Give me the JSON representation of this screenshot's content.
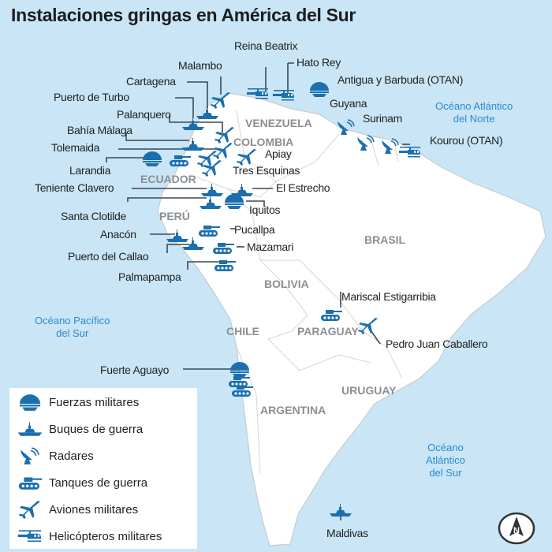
{
  "title": "Instalaciones gringas en América del Sur",
  "colors": {
    "ocean": "#c9e5f6",
    "land": "#ffffff",
    "icon": "#1b6fae",
    "border": "#c8ccd0"
  },
  "countries": [
    "VENEZUELA",
    "COLOMBIA",
    "ECUADOR",
    "PERÚ",
    "BRASIL",
    "BOLIVIA",
    "CHILE",
    "PARAGUAY",
    "URUGUAY",
    "ARGENTINA"
  ],
  "oceans": {
    "atl_norte": [
      "Océano Atlántico",
      "del Norte"
    ],
    "pac_sur": [
      "Océano Pacífico",
      "del Sur"
    ],
    "atl_sur": [
      "Océano",
      "Atlántico",
      "del Sur"
    ]
  },
  "sites": [
    {
      "name": "Reina Beatrix",
      "type": "helicopter"
    },
    {
      "name": "Hato Rey",
      "type": "helicopter"
    },
    {
      "name": "Malambo",
      "type": "plane"
    },
    {
      "name": "Antigua y Barbuda (OTAN)",
      "type": "forces"
    },
    {
      "name": "Cartagena",
      "type": "ship"
    },
    {
      "name": "Puerto de Turbo",
      "type": "ship"
    },
    {
      "name": "Guyana",
      "type": "radar"
    },
    {
      "name": "Palanquero",
      "type": "plane"
    },
    {
      "name": "Surinam",
      "type": "radar"
    },
    {
      "name": "Bahía Málaga",
      "type": "ship"
    },
    {
      "name": "Kourou (OTAN)",
      "type": "radar"
    },
    {
      "name": "Tolemaida",
      "type": "plane"
    },
    {
      "name": "Apiay",
      "type": "plane"
    },
    {
      "name": "Larandia",
      "type": "forces"
    },
    {
      "name": "Tres Esquinas",
      "type": "plane"
    },
    {
      "name": "Teniente Clavero",
      "type": "ship"
    },
    {
      "name": "El Estrecho",
      "type": "ship"
    },
    {
      "name": "Santa Clotilde",
      "type": "ship"
    },
    {
      "name": "Iquitos",
      "type": "forces"
    },
    {
      "name": "Pucallpa",
      "type": "tank"
    },
    {
      "name": "Anacón",
      "type": "ship"
    },
    {
      "name": "Mazamari",
      "type": "tank"
    },
    {
      "name": "Puerto del Callao",
      "type": "ship"
    },
    {
      "name": "Palmapampa",
      "type": "tank"
    },
    {
      "name": "Mariscal Estigarribia",
      "type": "tank"
    },
    {
      "name": "Pedro Juan Caballero",
      "type": "plane"
    },
    {
      "name": "Fuerte Aguayo",
      "type": "forces"
    },
    {
      "name": "Maldivas",
      "type": "ship"
    }
  ],
  "legend": [
    {
      "icon": "forces",
      "label": "Fuerzas militares"
    },
    {
      "icon": "ship",
      "label": "Buques de guerra"
    },
    {
      "icon": "radar",
      "label": "Radares"
    },
    {
      "icon": "tank",
      "label": "Tanques de guerra"
    },
    {
      "icon": "plane",
      "label": "Aviones militares"
    },
    {
      "icon": "helicopter",
      "label": "Helicópteros militares"
    }
  ],
  "compass": "N"
}
